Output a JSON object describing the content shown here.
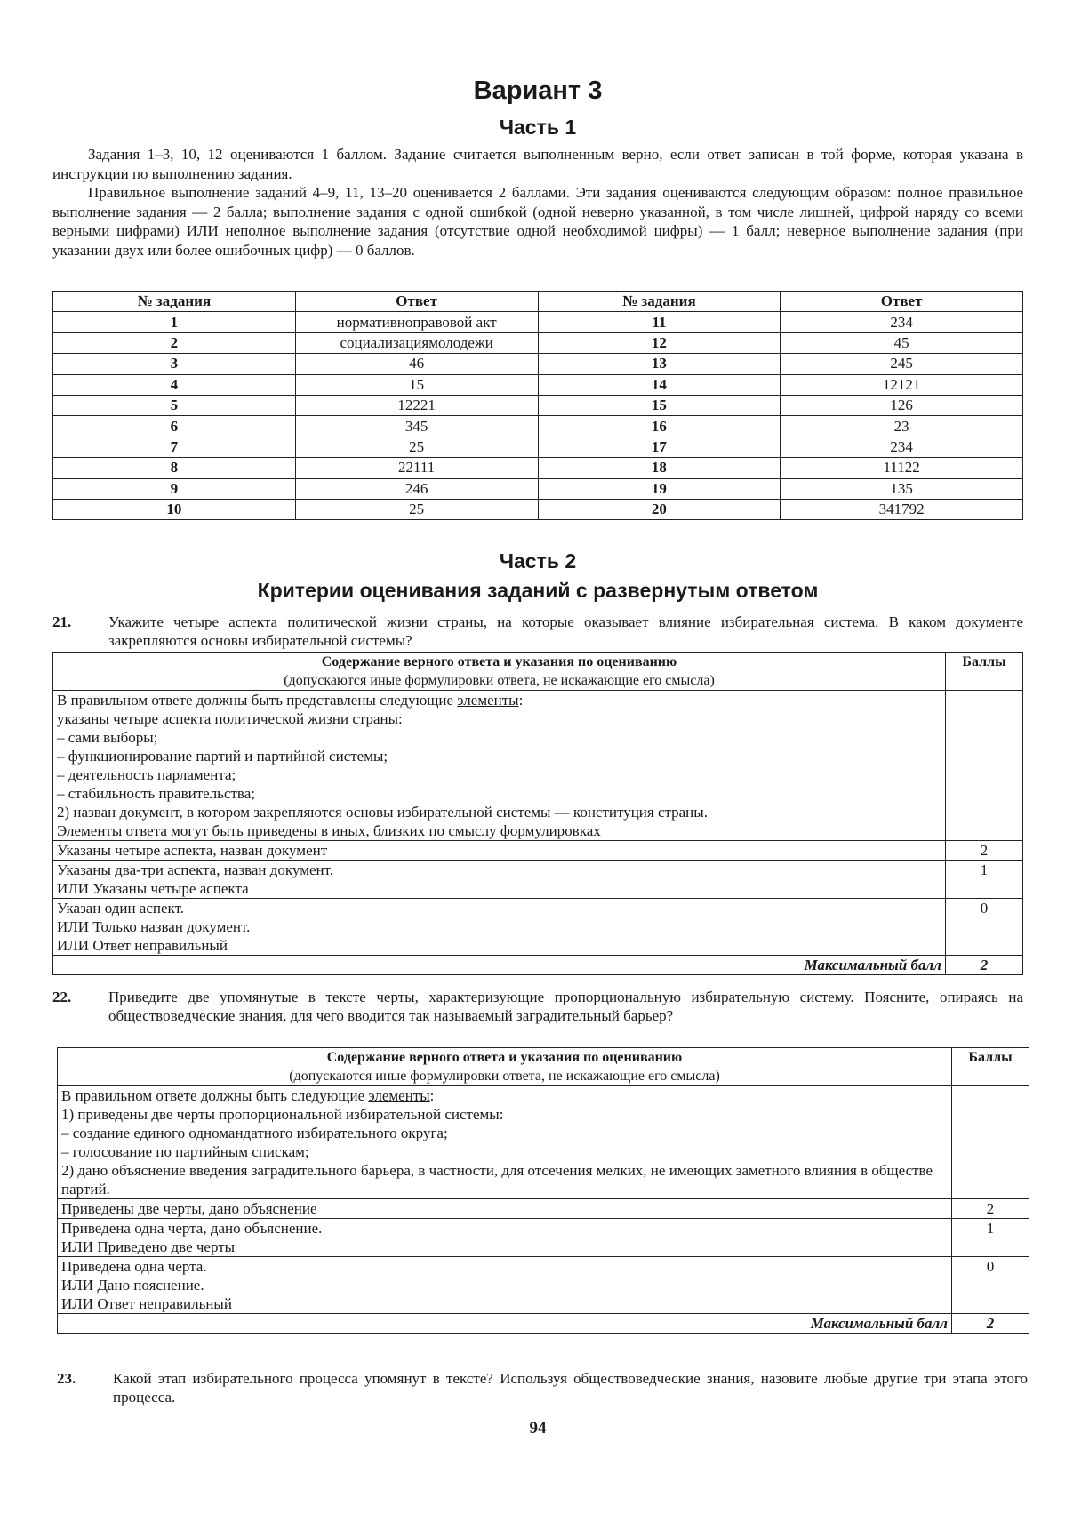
{
  "title": "Вариант 3",
  "part1": {
    "heading": "Часть 1",
    "paragraphs": [
      "Задания 1–3, 10, 12 оцениваются 1 баллом. Задание считается выполненным верно, если ответ записан в той форме, которая указана в инструкции по выполнению задания.",
      "Правильное выполнение заданий 4–9, 11, 13–20 оценивается 2 баллами. Эти задания оцениваются следующим образом: полное правильное выполнение задания — 2 балла; выполнение задания с одной ошибкой (одной неверно указанной, в том числе лишней, цифрой наряду со всеми верными цифрами) ИЛИ неполное выполнение задания (отсутствие одной необходимой цифры) — 1 балл; неверное выполнение задания (при указании двух или более ошибочных цифр) — 0 баллов."
    ],
    "table": {
      "headers": [
        "№ задания",
        "Ответ",
        "№ задания",
        "Ответ"
      ],
      "rows": [
        [
          "1",
          "нормативноправовой акт",
          "11",
          "234"
        ],
        [
          "2",
          "социализациямолодежи",
          "12",
          "45"
        ],
        [
          "3",
          "46",
          "13",
          "245"
        ],
        [
          "4",
          "15",
          "14",
          "12121"
        ],
        [
          "5",
          "12221",
          "15",
          "126"
        ],
        [
          "6",
          "345",
          "16",
          "23"
        ],
        [
          "7",
          "25",
          "17",
          "234"
        ],
        [
          "8",
          "22111",
          "18",
          "11122"
        ],
        [
          "9",
          "246",
          "19",
          "135"
        ],
        [
          "10",
          "25",
          "20",
          "341792"
        ]
      ]
    }
  },
  "part2": {
    "heading": "Часть 2",
    "subheading": "Критерии оценивания заданий с развернутым ответом",
    "criteria_header": "Содержание верного ответа и указания по оцениванию",
    "criteria_subheader": "(допускаются иные формулировки ответа, не искажающие его смысла)",
    "score_header": "Баллы",
    "max_label": "Максимальный балл",
    "questions": [
      {
        "number": "21.",
        "text": "Укажите четыре аспекта политической жизни страны, на которые оказывает влияние избирательная система. В каком документе закрепляются основы избирательной системы?",
        "answer_intro": "В правильном ответе должны быть представлены следующие ",
        "answer_intro_u": "элементы",
        "answer_lines": [
          "указаны четыре аспекта политической жизни страны:",
          "– сами выборы;",
          "– функционирование партий и партийной системы;",
          "– деятельность парламента;",
          "– стабильность правительства;",
          "2) назван документ, в котором закрепляются основы избирательной системы — конституция страны.",
          "Элементы ответа могут быть приведены в иных, близких по смыслу формулировках"
        ],
        "scores": [
          {
            "text": [
              "Указаны четыре аспекта, назван документ"
            ],
            "value": "2"
          },
          {
            "text": [
              "Указаны два-три аспекта, назван документ.",
              "ИЛИ Указаны четыре аспекта"
            ],
            "value": "1"
          },
          {
            "text": [
              "Указан один аспект.",
              "ИЛИ Только назван документ.",
              "ИЛИ Ответ неправильный"
            ],
            "value": "0"
          }
        ],
        "max": "2"
      },
      {
        "number": "22.",
        "text": "Приведите две упомянутые в тексте черты, характеризующие пропорциональную избирательную систему. Поясните, опираясь на обществоведческие знания, для чего вводится так называемый заградительный барьер?",
        "answer_intro": "В правильном ответе должны быть следующие ",
        "answer_intro_u": "элементы",
        "answer_lines": [
          "1) приведены две черты пропорциональной избирательной системы:",
          "– создание единого одномандатного избирательного округа;",
          "– голосование по партийным спискам;",
          "2) дано объяснение введения заградительного барьера, в частности, для отсечения мелких, не имеющих заметного влияния в обществе партий."
        ],
        "scores": [
          {
            "text": [
              "Приведены две черты, дано объяснение"
            ],
            "value": "2"
          },
          {
            "text": [
              "Приведена одна черта, дано объяснение.",
              "ИЛИ Приведено две черты"
            ],
            "value": "1"
          },
          {
            "text": [
              "Приведена одна черта.",
              "ИЛИ Дано пояснение.",
              "ИЛИ Ответ неправильный"
            ],
            "value": "0"
          }
        ],
        "max": "2"
      },
      {
        "number": "23.",
        "text": "Какой этап избирательного процесса упомянут в тексте? Используя обществоведческие знания, назовите любые другие три этапа этого процесса."
      }
    ]
  },
  "page_number": "94"
}
